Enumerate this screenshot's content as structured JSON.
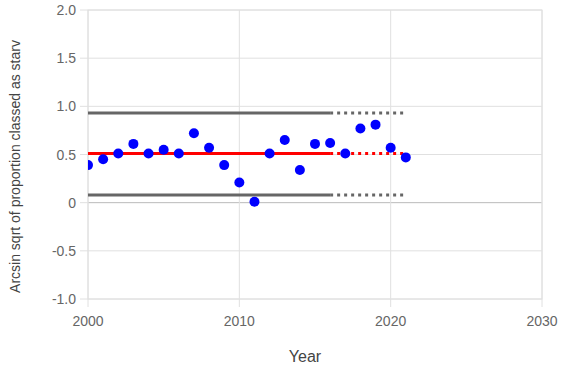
{
  "chart_data": {
    "type": "scatter",
    "x_label": "Year",
    "y_label": "Arcsin sqrt of proportion classed as starv",
    "xlim": [
      2000,
      2030
    ],
    "xticks": [
      2000,
      2010,
      2020,
      2030
    ],
    "ylim": [
      -1,
      2
    ],
    "yticks": [
      {
        "value": -1,
        "label": "-1.0"
      },
      -0.5,
      0,
      0.5,
      {
        "value": 1,
        "label": "1.0"
      },
      1.5,
      {
        "value": 2,
        "label": "2.0"
      }
    ],
    "grid": true,
    "series": [
      {
        "type": "scatter",
        "color": "#0000ff",
        "marker": "circle",
        "x": [
          2000,
          2001,
          2002,
          2003,
          2004,
          2005,
          2006,
          2007,
          2008,
          2009,
          2010,
          2011,
          2012,
          2013,
          2014,
          2015,
          2016,
          2017,
          2018,
          2019,
          2020,
          2021
        ],
        "values": [
          0.39,
          0.45,
          0.51,
          0.61,
          0.51,
          0.55,
          0.51,
          0.72,
          0.57,
          0.39,
          0.21,
          0.01,
          0.51,
          0.65,
          0.34,
          0.61,
          0.62,
          0.51,
          0.77,
          0.81,
          0.57,
          0.47
        ]
      },
      {
        "type": "line",
        "color": "#ff0000",
        "line_style": "solid",
        "x": [
          2000,
          2016
        ],
        "values": [
          0.51,
          0.51
        ]
      },
      {
        "type": "line",
        "color": "#ff0000",
        "line_style": "dotted",
        "x": [
          2016,
          2021
        ],
        "values": [
          0.51,
          0.51
        ]
      },
      {
        "type": "line",
        "color": "#666666",
        "line_style": "solid",
        "x": [
          2000,
          2016
        ],
        "values": [
          0.93,
          0.93
        ]
      },
      {
        "type": "line",
        "color": "#666666",
        "line_style": "dotted",
        "x": [
          2016,
          2021
        ],
        "values": [
          0.93,
          0.93
        ]
      },
      {
        "type": "line",
        "color": "#666666",
        "line_style": "solid",
        "x": [
          2000,
          2016
        ],
        "values": [
          0.08,
          0.08
        ]
      },
      {
        "type": "line",
        "color": "#666666",
        "line_style": "dotted",
        "x": [
          2016,
          2021
        ],
        "values": [
          0.08,
          0.08
        ]
      }
    ]
  }
}
